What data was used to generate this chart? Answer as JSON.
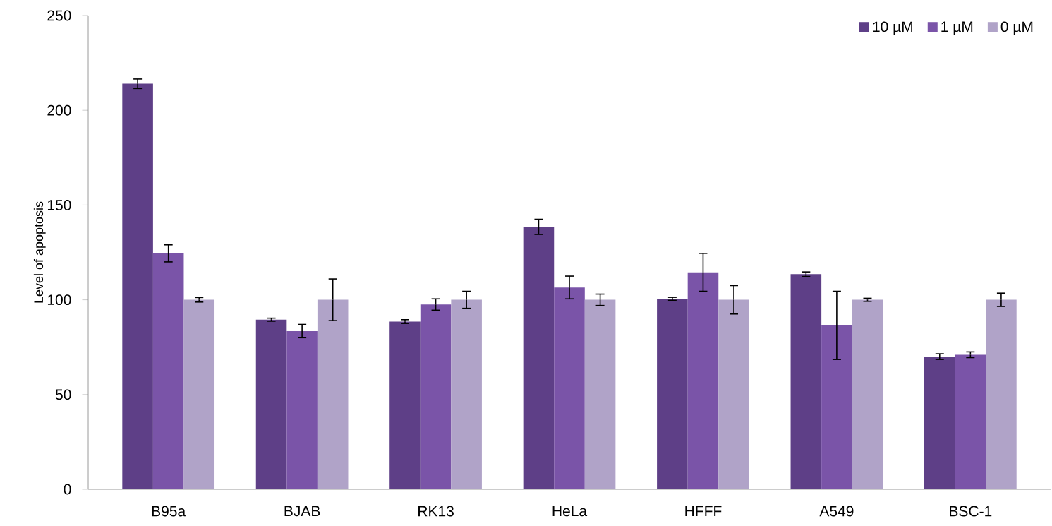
{
  "chart_data": {
    "type": "bar",
    "ylabel": "Level of apoptosis",
    "categories": [
      "B95a",
      "BJAB",
      "RK13",
      "HeLa",
      "HFFF",
      "A549",
      "BSC-1"
    ],
    "series": [
      {
        "name": "10 µM",
        "color": "#5e3f87",
        "values": [
          214,
          89.5,
          88.5,
          138.5,
          100.5,
          113.5,
          70
        ],
        "errors": [
          2.5,
          0.8,
          1,
          4,
          0.8,
          1.2,
          1.5
        ]
      },
      {
        "name": "1 µM",
        "color": "#7a54a8",
        "values": [
          124.5,
          83.5,
          97.5,
          106.5,
          114.5,
          86.5,
          71
        ],
        "errors": [
          4.5,
          3.5,
          3,
          6,
          10,
          18,
          1.5
        ]
      },
      {
        "name": "0 µM",
        "color": "#b0a3c8",
        "values": [
          100,
          100,
          100,
          100,
          100,
          100,
          100
        ],
        "errors": [
          1.2,
          11,
          4.5,
          3,
          7.5,
          0.8,
          3.5
        ]
      }
    ],
    "ylim": [
      0,
      250
    ],
    "yticks": [
      0,
      50,
      100,
      150,
      200,
      250
    ],
    "legend": "top right"
  }
}
